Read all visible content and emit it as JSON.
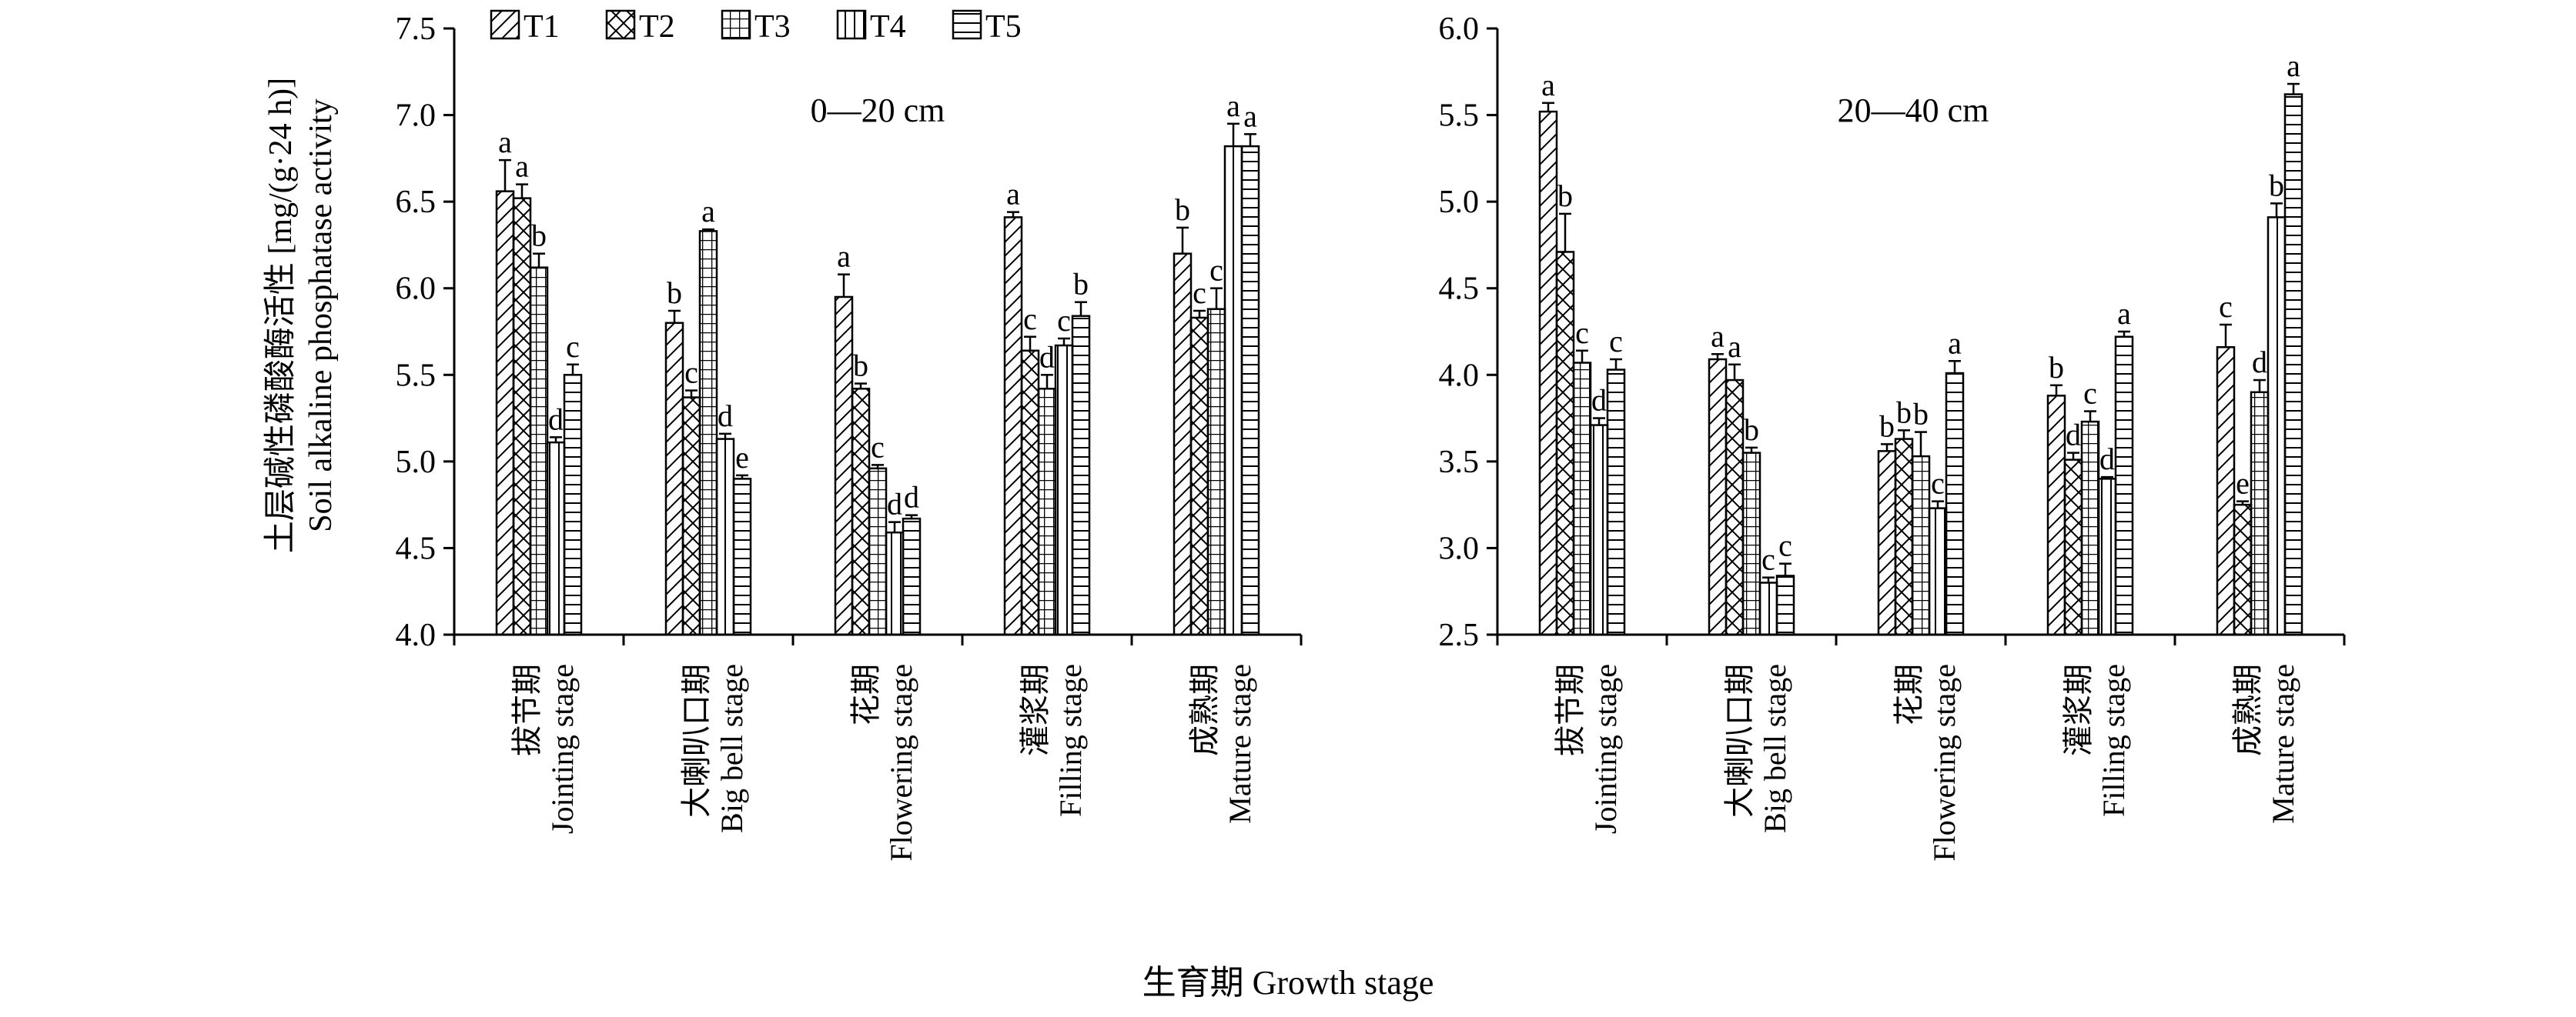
{
  "figure": {
    "ylabel_cn": "土层碱性磷酸酶活性 [mg/(g·24 h)]",
    "ylabel_en": "Soil alkaline phosphatase activity",
    "xlabel": "生育期 Growth stage"
  },
  "chart_data": [
    {
      "type": "bar",
      "depth_label": "0—20 cm",
      "ylim": [
        4.0,
        7.5
      ],
      "yticks": [
        "4.0",
        "4.5",
        "5.0",
        "5.5",
        "6.0",
        "6.5",
        "7.0",
        "7.5"
      ],
      "categories": [
        {
          "cn": "拔节期",
          "en": "Jointing stage"
        },
        {
          "cn": "大喇叭口期",
          "en": "Big bell stage"
        },
        {
          "cn": "花期",
          "en": "Flowering stage"
        },
        {
          "cn": "灌浆期",
          "en": "Filling stage"
        },
        {
          "cn": "成熟期",
          "en": "Mature stage"
        }
      ],
      "series": [
        {
          "name": "T1",
          "values": [
            6.56,
            5.8,
            5.95,
            6.41,
            6.2
          ],
          "errors": [
            0.18,
            0.07,
            0.13,
            0.03,
            0.15
          ],
          "letters": [
            "a",
            "b",
            "a",
            "a",
            "b"
          ]
        },
        {
          "name": "T2",
          "values": [
            6.52,
            5.37,
            5.42,
            5.64,
            5.83
          ],
          "errors": [
            0.08,
            0.04,
            0.03,
            0.08,
            0.04
          ],
          "letters": [
            "a",
            "c",
            "b",
            "c",
            "c"
          ]
        },
        {
          "name": "T3",
          "values": [
            6.12,
            6.33,
            4.96,
            5.42,
            5.88
          ],
          "errors": [
            0.08,
            0.01,
            0.02,
            0.08,
            0.12
          ],
          "letters": [
            "b",
            "a",
            "c",
            "d",
            "c"
          ]
        },
        {
          "name": "T4",
          "values": [
            5.11,
            5.13,
            4.59,
            5.67,
            6.82
          ],
          "errors": [
            0.03,
            0.03,
            0.06,
            0.04,
            0.13
          ],
          "letters": [
            "d",
            "d",
            "d",
            "c",
            "a"
          ]
        },
        {
          "name": "T5",
          "values": [
            5.5,
            4.9,
            4.67,
            5.84,
            6.82
          ],
          "errors": [
            0.06,
            0.02,
            0.02,
            0.08,
            0.07
          ],
          "letters": [
            "c",
            "e",
            "d",
            "b",
            "a"
          ]
        }
      ],
      "legend": "top-left"
    },
    {
      "type": "bar",
      "depth_label": "20—40 cm",
      "ylim": [
        2.5,
        6.0
      ],
      "yticks": [
        "2.5",
        "3.0",
        "3.5",
        "4.0",
        "4.5",
        "5.0",
        "5.5",
        "6.0"
      ],
      "categories": [
        {
          "cn": "拔节期",
          "en": "Jointing stage"
        },
        {
          "cn": "大喇叭口期",
          "en": "Big bell stage"
        },
        {
          "cn": "花期",
          "en": "Flowering stage"
        },
        {
          "cn": "灌浆期",
          "en": "Filling stage"
        },
        {
          "cn": "成熟期",
          "en": "Mature stage"
        }
      ],
      "series": [
        {
          "name": "T1",
          "values": [
            5.52,
            4.09,
            3.56,
            3.88,
            4.16
          ],
          "errors": [
            0.05,
            0.03,
            0.04,
            0.06,
            0.13
          ],
          "letters": [
            "a",
            "a",
            "b",
            "b",
            "c"
          ]
        },
        {
          "name": "T2",
          "values": [
            4.71,
            3.97,
            3.63,
            3.51,
            3.25
          ],
          "errors": [
            0.22,
            0.09,
            0.05,
            0.04,
            0.02
          ],
          "letters": [
            "b",
            "a",
            "b",
            "d",
            "e"
          ]
        },
        {
          "name": "T3",
          "values": [
            4.07,
            3.55,
            3.53,
            3.73,
            3.9
          ],
          "errors": [
            0.07,
            0.03,
            0.14,
            0.06,
            0.07
          ],
          "letters": [
            "c",
            "b",
            "b",
            "c",
            "d"
          ]
        },
        {
          "name": "T4",
          "values": [
            3.71,
            2.8,
            3.23,
            3.4,
            4.91
          ],
          "errors": [
            0.04,
            0.03,
            0.04,
            0.01,
            0.08
          ],
          "letters": [
            "d",
            "c",
            "c",
            "d",
            "b"
          ]
        },
        {
          "name": "T5",
          "values": [
            4.03,
            2.84,
            4.01,
            4.22,
            5.62
          ],
          "errors": [
            0.06,
            0.07,
            0.07,
            0.03,
            0.06
          ],
          "letters": [
            "c",
            "c",
            "a",
            "a",
            "a"
          ]
        }
      ]
    }
  ]
}
